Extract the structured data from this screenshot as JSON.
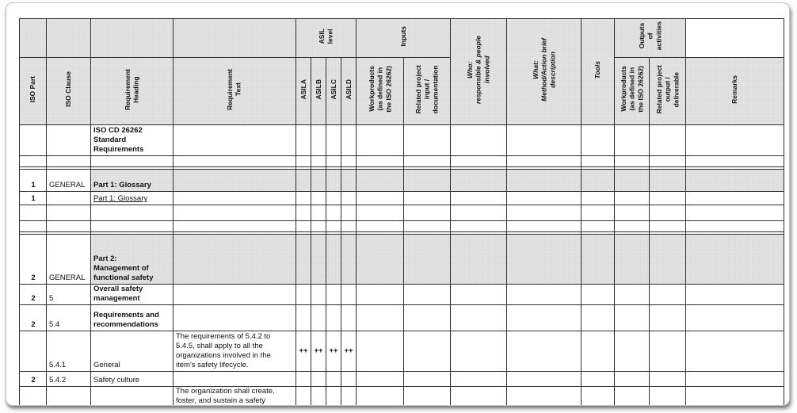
{
  "table": {
    "header": {
      "row1": {
        "asil_level": "ASIL\nlevel",
        "inputs": "Inputs",
        "who": "Who:\nresponsible & people\ninvolved",
        "what": "What:\nMethod/Action brief\ndescription",
        "tools": "Tools",
        "outputs": "Outputs\nof\nactivities"
      },
      "row2": {
        "iso_part": "ISO Part",
        "iso_clause": "ISO Clause",
        "req_heading": "Requirement\nHeading",
        "req_text": "Requirement\nText",
        "asil_a": "ASILA",
        "asil_b": "ASILB",
        "asil_c": "ASILC",
        "asil_d": "ASILD",
        "workproducts_in": "Workproducts\n(as defined in\nthe ISO 26262)",
        "related_in": "Related project\ninput /\ndocumentation",
        "workproducts_out": "Workproducts\n(as defined in\nthe ISO 26262)",
        "related_out": "Related project\noutput /\ndeliverable",
        "remarks": "Remarks"
      }
    },
    "rows": [
      {
        "heading": "ISO CD 26262\nStandard\nRequirements",
        "hstyle": "boldsm"
      },
      {},
      {},
      {
        "gray": true,
        "part": "1",
        "clause": "GENERAL",
        "heading": "Part 1: Glossary",
        "hstyle": "big"
      },
      {
        "part": "1",
        "heading": "Part 1: Glossary",
        "hstyle": "underline"
      },
      {},
      {},
      {},
      {
        "gray": true,
        "part": "2",
        "clause": "GENERAL",
        "heading": "Part 2:\nManagement of\nfunctional safety",
        "hstyle": "big"
      },
      {
        "part": "2",
        "clause": "5",
        "heading": "Overall safety\nmanagement",
        "hstyle": "md"
      },
      {
        "part": "2",
        "clause": "5.4",
        "heading": "Requirements and\nrecommendations",
        "hstyle": "boldsm"
      },
      {
        "clause": "5.4.1",
        "heading": "General",
        "hstyle": "plain",
        "text": "The requirements of 5.4.2 to\n5.4.5, shall apply to all the\norganizations involved in the\nitem's safety lifecycle.",
        "asil": [
          "++",
          "++",
          "++",
          "++"
        ]
      },
      {
        "part": "2",
        "clause": "5.4.2",
        "heading": "Safety culture",
        "hstyle": "plain"
      },
      {
        "text": "The organization shall create,\nfoster, and sustain a safety",
        "text_top": true
      }
    ]
  },
  "colors": {
    "header_fill": "#d9d9d9",
    "section_row_fill": "#d9d9d9",
    "grid_line": "#2e2e2e",
    "text": "#111111"
  }
}
